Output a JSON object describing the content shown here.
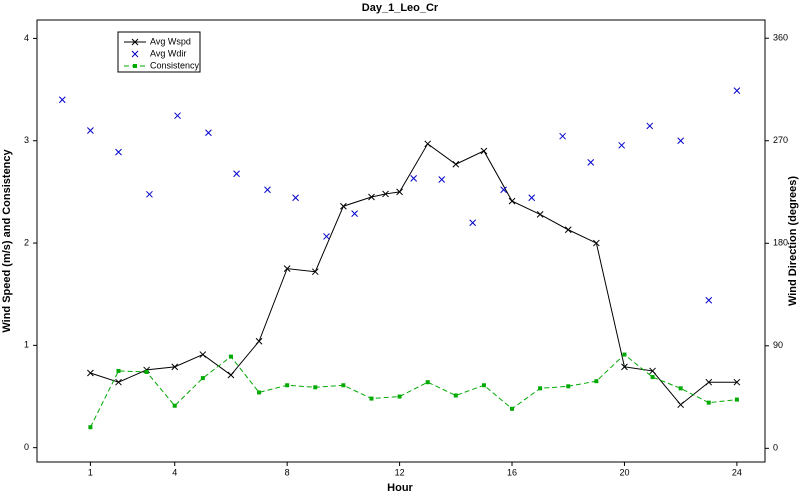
{
  "chart_data": {
    "type": "line",
    "title": "Day_1_Leo_Cr",
    "x_label": "Hour",
    "y_label": "Wind Speed (m/s) and Consistency",
    "y2_label": "Wind Direction (degrees)",
    "xlim": [
      -0.9,
      25
    ],
    "xticks": [
      1,
      4,
      8,
      12,
      16,
      20,
      24
    ],
    "ylim": [
      -0.14,
      4.18
    ],
    "yticks": [
      0,
      1,
      2,
      3,
      4
    ],
    "y2lim": [
      -12,
      376
    ],
    "y2ticks": [
      0,
      90,
      180,
      270,
      360
    ],
    "legend": "top-left",
    "series": [
      {
        "name": "Avg Wspd",
        "color": "#000000",
        "style": "solid-x",
        "x": [
          1,
          2,
          3,
          4,
          5,
          6,
          7,
          8,
          9,
          10,
          11,
          11.5,
          12,
          13,
          14,
          15,
          16,
          17,
          18,
          19,
          20,
          21,
          22,
          23,
          24
        ],
        "values": [
          0.73,
          0.64,
          0.76,
          0.79,
          0.91,
          0.71,
          1.04,
          1.75,
          1.72,
          2.36,
          2.45,
          2.48,
          2.5,
          2.97,
          2.77,
          2.9,
          2.41,
          2.28,
          2.13,
          2.0,
          0.79,
          0.75,
          0.42,
          0.64,
          0.64
        ]
      },
      {
        "name": "Avg Wdir",
        "color": "#0000cc",
        "style": "x",
        "axis": "y2",
        "x": [
          0,
          1,
          2,
          3.1,
          4.1,
          5.2,
          6.2,
          7.3,
          8.3,
          9.4,
          10.4,
          12.5,
          13.5,
          14.6,
          15.7,
          16.7,
          17.8,
          18.8,
          19.9,
          20.9,
          22,
          23,
          24
        ],
        "values": [
          306,
          279,
          260,
          223,
          292,
          277,
          241,
          227,
          220,
          186,
          206,
          237,
          236,
          198,
          227,
          220,
          274,
          251,
          266,
          283,
          270,
          130,
          314
        ]
      },
      {
        "name": "Consistency",
        "color": "#00aa00",
        "style": "dashed-square",
        "x": [
          1,
          2,
          3,
          4,
          5,
          6,
          7,
          8,
          9,
          10,
          11,
          12,
          13,
          14,
          15,
          16,
          17,
          18,
          19,
          20,
          21,
          22,
          23,
          24
        ],
        "values": [
          0.2,
          0.75,
          0.74,
          0.41,
          0.68,
          0.89,
          0.54,
          0.61,
          0.59,
          0.61,
          0.48,
          0.5,
          0.64,
          0.51,
          0.61,
          0.38,
          0.58,
          0.6,
          0.65,
          0.91,
          0.69,
          0.58,
          0.44,
          0.47
        ]
      }
    ]
  }
}
